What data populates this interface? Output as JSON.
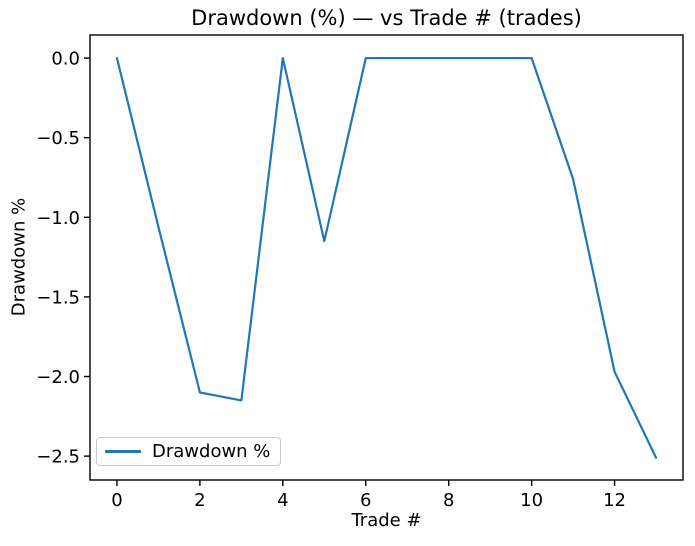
{
  "figure": {
    "background": "#ffffff",
    "text_color": "#000000",
    "spine_color": "#000000"
  },
  "chart_data": {
    "type": "line",
    "title": "Drawdown (%) — vs Trade # (trades)",
    "xlabel": "Trade #",
    "ylabel": "Drawdown %",
    "grid": false,
    "legend_position": "lower left",
    "xlim": [
      -0.65,
      13.65
    ],
    "ylim": [
      -2.65,
      0.145
    ],
    "xticks": [
      0,
      2,
      4,
      6,
      8,
      10,
      12
    ],
    "xticklabels": [
      "0",
      "2",
      "4",
      "6",
      "8",
      "10",
      "12"
    ],
    "yticks": [
      0,
      -0.5,
      -1,
      -1.5,
      -2,
      -2.5
    ],
    "yticklabels": [
      "0.0",
      "−0.5",
      "−1.0",
      "−1.5",
      "−2.0",
      "−2.5"
    ],
    "series": [
      {
        "name": "Drawdown %",
        "color": "#1f77b4",
        "x": [
          0,
          1,
          2,
          3,
          4,
          5,
          6,
          7,
          8,
          9,
          10,
          11,
          12,
          13
        ],
        "y": [
          0,
          -1.06,
          -2.1,
          -2.15,
          0,
          -1.15,
          0,
          0,
          0,
          0,
          0,
          -0.76,
          -1.97,
          -2.51
        ]
      }
    ]
  }
}
